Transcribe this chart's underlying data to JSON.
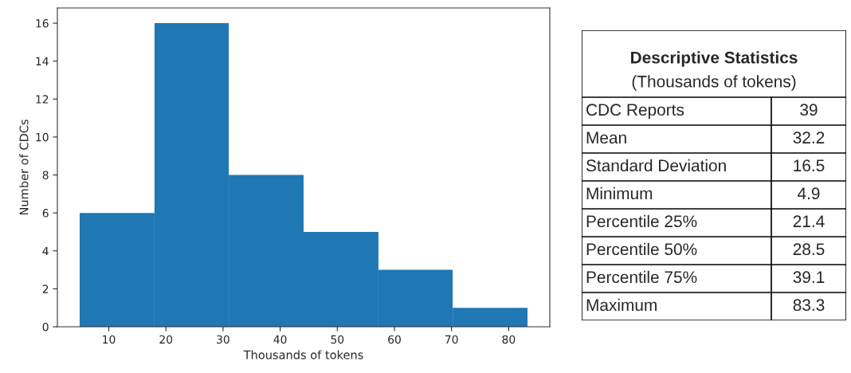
{
  "chart_data": [
    {
      "type": "histogram",
      "xlabel": "Thousands of tokens",
      "ylabel": "Number of CDCs",
      "bins": [
        4.9,
        18.0,
        31.0,
        44.1,
        57.2,
        70.2,
        83.3
      ],
      "values": [
        6,
        16,
        8,
        5,
        3,
        1
      ],
      "color": "#1f77b4",
      "xlim": [
        1.0,
        87.2
      ],
      "xticks": [
        10,
        20,
        30,
        40,
        50,
        60,
        70,
        80
      ],
      "ylim": [
        0,
        16.8
      ],
      "yticks": [
        0,
        2,
        4,
        6,
        8,
        10,
        12,
        14,
        16
      ],
      "grid": false
    },
    {
      "type": "other",
      "title": "Descriptive Statistics",
      "subtitle": "(Thousands of tokens)",
      "categories": [
        "CDC Reports",
        "Mean",
        "Standard Deviation",
        "Minimum",
        "Percentile 25%",
        "Percentile 50%",
        "Percentile 75%",
        "Maximum"
      ],
      "values": [
        39,
        32.2,
        16.5,
        4.9,
        21.4,
        28.5,
        39.1,
        83.3
      ],
      "data_labels": true
    }
  ]
}
